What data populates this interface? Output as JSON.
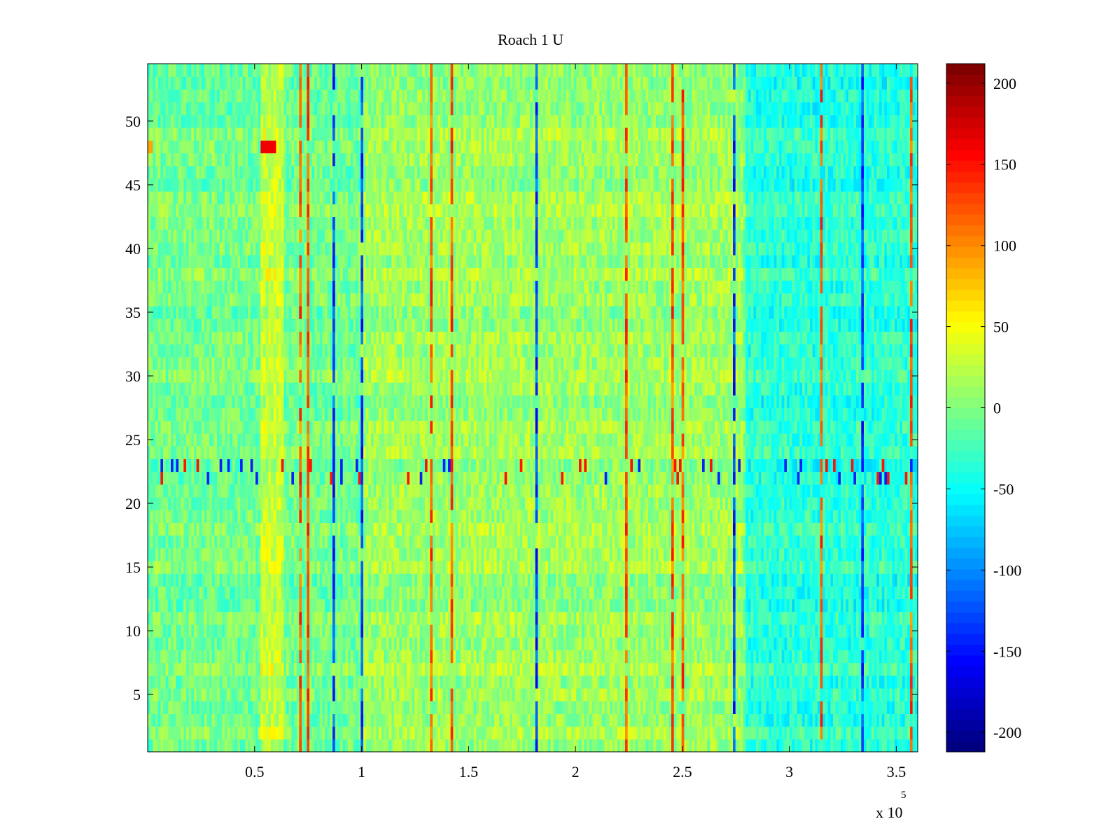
{
  "chart_data": {
    "type": "heatmap",
    "title": "Roach 1 U",
    "xlabel": "",
    "ylabel": "",
    "x_multiplier_label": "x 10",
    "x_multiplier_exponent": "5",
    "xlim": [
      0,
      3.6
    ],
    "ylim": [
      0.5,
      54.5
    ],
    "x_ticks": [
      0.5,
      1,
      1.5,
      2,
      2.5,
      3,
      3.5
    ],
    "x_tick_labels": [
      "0.5",
      "1",
      "1.5",
      "2",
      "2.5",
      "3",
      "3.5"
    ],
    "y_ticks": [
      5,
      10,
      15,
      20,
      25,
      30,
      35,
      40,
      45,
      50
    ],
    "y_tick_labels": [
      "5",
      "10",
      "15",
      "20",
      "25",
      "30",
      "35",
      "40",
      "45",
      "50"
    ],
    "rows": 54,
    "columns_x_range": [
      0,
      360000
    ],
    "colorbar": {
      "colormap": "jet",
      "clim": [
        -212,
        212
      ],
      "ticks": [
        200,
        150,
        100,
        50,
        0,
        -50,
        -100,
        -150,
        -200
      ],
      "tick_labels": [
        "200",
        "150",
        "100",
        "50",
        "0",
        "-50",
        "-100",
        "-150",
        "-200"
      ]
    },
    "features": {
      "warm_band_x": [
        0.53,
        0.63
      ],
      "hot_spot": {
        "x": [
          0.53,
          0.6
        ],
        "y": 48,
        "value": 160
      },
      "elevated_region_x": [
        1.0,
        2.78
      ],
      "cool_region_x": [
        2.8,
        3.6
      ],
      "streak_row": 22.5
    }
  }
}
